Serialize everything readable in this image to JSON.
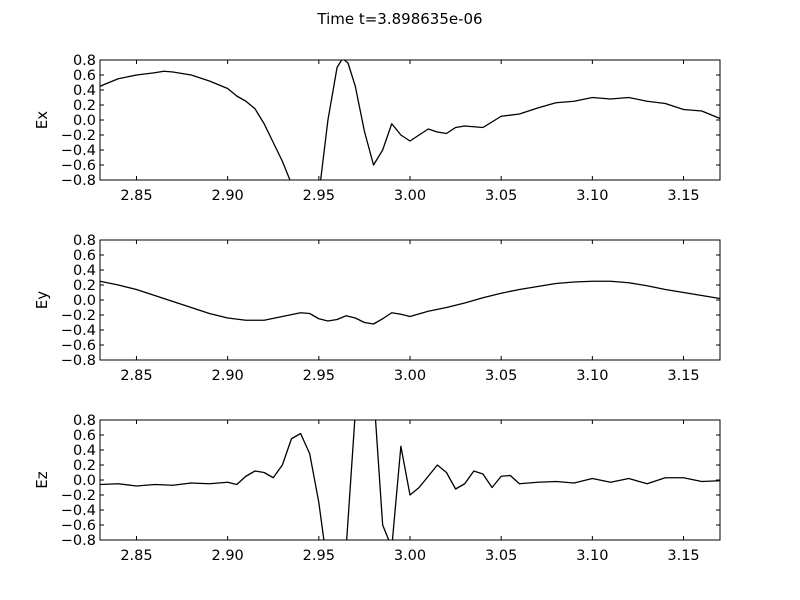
{
  "figure": {
    "title": "Time t=3.898635e-06"
  },
  "chart_data": [
    {
      "type": "line",
      "ylabel": "Ex",
      "xlim": [
        2.83,
        3.17
      ],
      "ylim": [
        -0.8,
        0.8
      ],
      "xticks": [
        "2.85",
        "2.90",
        "2.95",
        "3.00",
        "3.05",
        "3.10",
        "3.15"
      ],
      "xtick_values": [
        2.85,
        2.9,
        2.95,
        3.0,
        3.05,
        3.1,
        3.15
      ],
      "yticks": [
        "0.8",
        "0.6",
        "0.4",
        "0.2",
        "0.0",
        "−0.2",
        "−0.4",
        "−0.6",
        "−0.8"
      ],
      "ytick_values": [
        0.8,
        0.6,
        0.4,
        0.2,
        0.0,
        -0.2,
        -0.4,
        -0.6,
        -0.8
      ],
      "x": [
        2.83,
        2.84,
        2.85,
        2.86,
        2.865,
        2.87,
        2.88,
        2.89,
        2.9,
        2.905,
        2.91,
        2.915,
        2.92,
        2.925,
        2.93,
        2.935,
        2.945,
        2.95,
        2.955,
        2.96,
        2.963,
        2.966,
        2.97,
        2.975,
        2.98,
        2.985,
        2.99,
        2.995,
        3.0,
        3.005,
        3.01,
        3.015,
        3.02,
        3.025,
        3.03,
        3.04,
        3.05,
        3.06,
        3.07,
        3.08,
        3.09,
        3.1,
        3.11,
        3.12,
        3.13,
        3.14,
        3.15,
        3.16,
        3.17
      ],
      "y": [
        0.45,
        0.55,
        0.6,
        0.63,
        0.65,
        0.64,
        0.6,
        0.52,
        0.42,
        0.32,
        0.25,
        0.15,
        -0.05,
        -0.3,
        -0.55,
        -0.85,
        -2.0,
        -1.0,
        0.0,
        0.7,
        0.82,
        0.76,
        0.45,
        -0.15,
        -0.6,
        -0.4,
        -0.05,
        -0.2,
        -0.28,
        -0.2,
        -0.12,
        -0.16,
        -0.18,
        -0.1,
        -0.08,
        -0.1,
        0.05,
        0.08,
        0.16,
        0.23,
        0.25,
        0.3,
        0.28,
        0.3,
        0.25,
        0.22,
        0.14,
        0.12,
        0.02
      ]
    },
    {
      "type": "line",
      "ylabel": "Ey",
      "xlim": [
        2.83,
        3.17
      ],
      "ylim": [
        -0.8,
        0.8
      ],
      "xticks": [
        "2.85",
        "2.90",
        "2.95",
        "3.00",
        "3.05",
        "3.10",
        "3.15"
      ],
      "xtick_values": [
        2.85,
        2.9,
        2.95,
        3.0,
        3.05,
        3.1,
        3.15
      ],
      "yticks": [
        "0.8",
        "0.6",
        "0.4",
        "0.2",
        "0.0",
        "−0.2",
        "−0.4",
        "−0.6",
        "−0.8"
      ],
      "ytick_values": [
        0.8,
        0.6,
        0.4,
        0.2,
        0.0,
        -0.2,
        -0.4,
        -0.6,
        -0.8
      ],
      "x": [
        2.83,
        2.84,
        2.85,
        2.86,
        2.87,
        2.88,
        2.89,
        2.9,
        2.91,
        2.92,
        2.93,
        2.94,
        2.945,
        2.95,
        2.955,
        2.96,
        2.965,
        2.97,
        2.975,
        2.98,
        2.985,
        2.99,
        2.995,
        3.0,
        3.01,
        3.02,
        3.03,
        3.04,
        3.05,
        3.06,
        3.07,
        3.08,
        3.09,
        3.1,
        3.11,
        3.12,
        3.13,
        3.14,
        3.15,
        3.16,
        3.17
      ],
      "y": [
        0.25,
        0.2,
        0.14,
        0.06,
        -0.02,
        -0.1,
        -0.18,
        -0.24,
        -0.27,
        -0.27,
        -0.22,
        -0.17,
        -0.18,
        -0.25,
        -0.28,
        -0.26,
        -0.21,
        -0.24,
        -0.3,
        -0.32,
        -0.25,
        -0.17,
        -0.19,
        -0.22,
        -0.15,
        -0.1,
        -0.04,
        0.03,
        0.09,
        0.14,
        0.18,
        0.22,
        0.24,
        0.25,
        0.25,
        0.23,
        0.19,
        0.14,
        0.1,
        0.06,
        0.02
      ]
    },
    {
      "type": "line",
      "ylabel": "Ez",
      "xlim": [
        2.83,
        3.17
      ],
      "ylim": [
        -0.8,
        0.8
      ],
      "xticks": [
        "2.85",
        "2.90",
        "2.95",
        "3.00",
        "3.05",
        "3.10",
        "3.15"
      ],
      "xtick_values": [
        2.85,
        2.9,
        2.95,
        3.0,
        3.05,
        3.1,
        3.15
      ],
      "yticks": [
        "0.8",
        "0.6",
        "0.4",
        "0.2",
        "0.0",
        "−0.2",
        "−0.4",
        "−0.6",
        "−0.8"
      ],
      "ytick_values": [
        0.8,
        0.6,
        0.4,
        0.2,
        0.0,
        -0.2,
        -0.4,
        -0.6,
        -0.8
      ],
      "x": [
        2.83,
        2.84,
        2.85,
        2.86,
        2.87,
        2.88,
        2.89,
        2.9,
        2.905,
        2.91,
        2.915,
        2.92,
        2.925,
        2.93,
        2.935,
        2.94,
        2.945,
        2.95,
        2.955,
        2.96,
        2.965,
        2.97,
        2.975,
        2.98,
        2.985,
        2.99,
        2.995,
        3.0,
        3.005,
        3.01,
        3.015,
        3.02,
        3.025,
        3.03,
        3.035,
        3.04,
        3.045,
        3.05,
        3.055,
        3.06,
        3.07,
        3.08,
        3.09,
        3.1,
        3.11,
        3.12,
        3.13,
        3.14,
        3.15,
        3.16,
        3.17
      ],
      "y": [
        -0.06,
        -0.05,
        -0.08,
        -0.06,
        -0.07,
        -0.04,
        -0.05,
        -0.03,
        -0.06,
        0.05,
        0.12,
        0.1,
        0.03,
        0.2,
        0.55,
        0.62,
        0.35,
        -0.3,
        -1.2,
        -1.6,
        -0.9,
        0.9,
        1.4,
        1.2,
        -0.6,
        -0.9,
        0.45,
        -0.2,
        -0.1,
        0.05,
        0.2,
        0.1,
        -0.12,
        -0.05,
        0.12,
        0.08,
        -0.1,
        0.05,
        0.06,
        -0.05,
        -0.03,
        -0.02,
        -0.04,
        0.02,
        -0.03,
        0.02,
        -0.05,
        0.03,
        0.03,
        -0.02,
        -0.01
      ]
    }
  ]
}
